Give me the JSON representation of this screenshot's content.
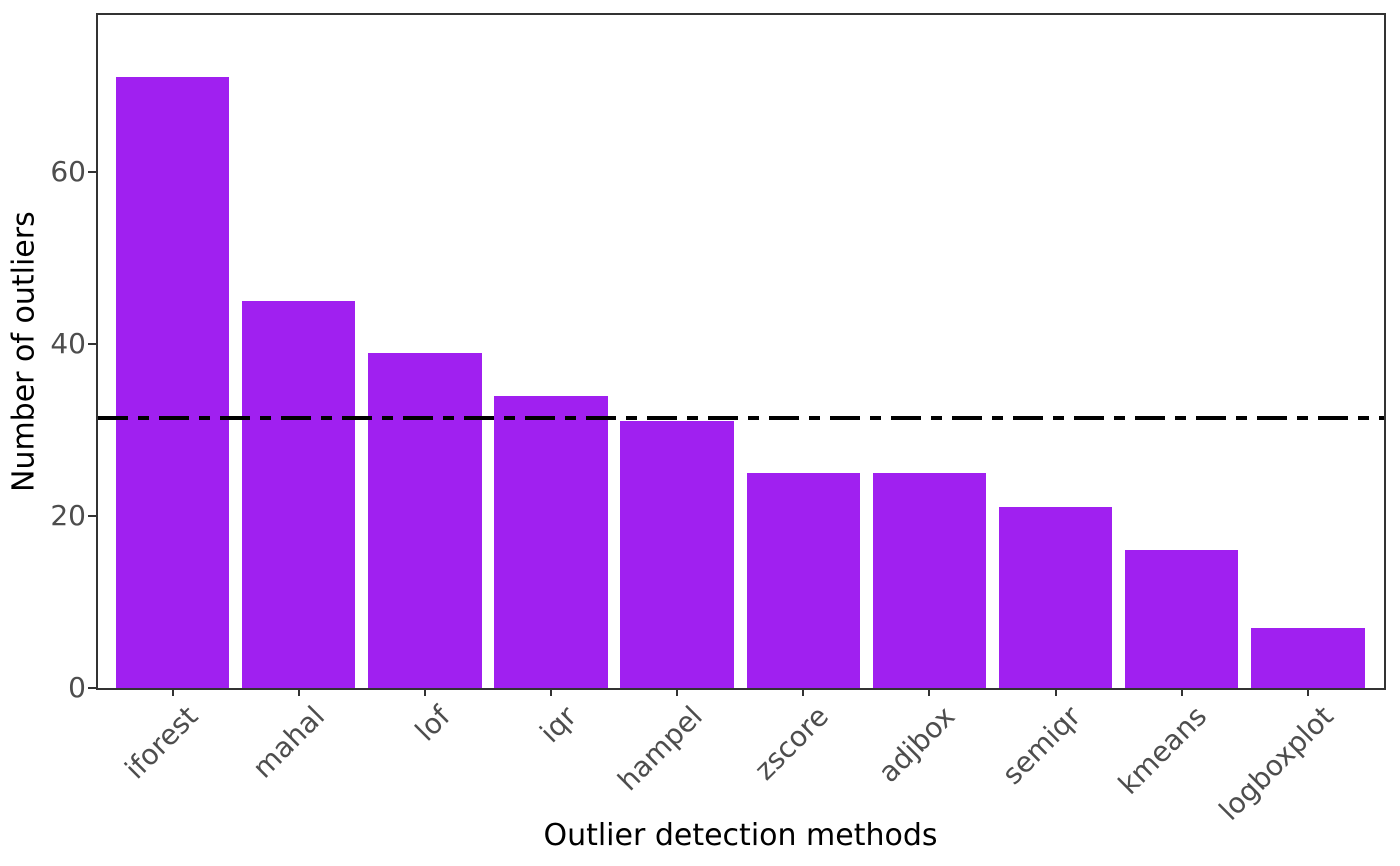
{
  "chart_data": {
    "type": "bar",
    "title": "",
    "xlabel": "Outlier detection methods",
    "ylabel": "Number of outliers",
    "categories": [
      "iforest",
      "mahal",
      "lof",
      "iqr",
      "hampel",
      "zscore",
      "adjbox",
      "semiqr",
      "kmeans",
      "logboxplot"
    ],
    "values": [
      71,
      45,
      39,
      34,
      31,
      25,
      25,
      21,
      16,
      7
    ],
    "yticks": [
      0,
      20,
      40,
      60
    ],
    "ylim": [
      0,
      78.3
    ],
    "bar_color": "#A020F0",
    "reference_line": {
      "value": 31.4,
      "style": "dash-dot",
      "color": "#000000"
    },
    "grid": false,
    "legend": false,
    "background": "#ffffff",
    "panel_border_color": "#333333",
    "tick_label_color": "#4d4d4d",
    "axis_title_color": "#000000"
  }
}
